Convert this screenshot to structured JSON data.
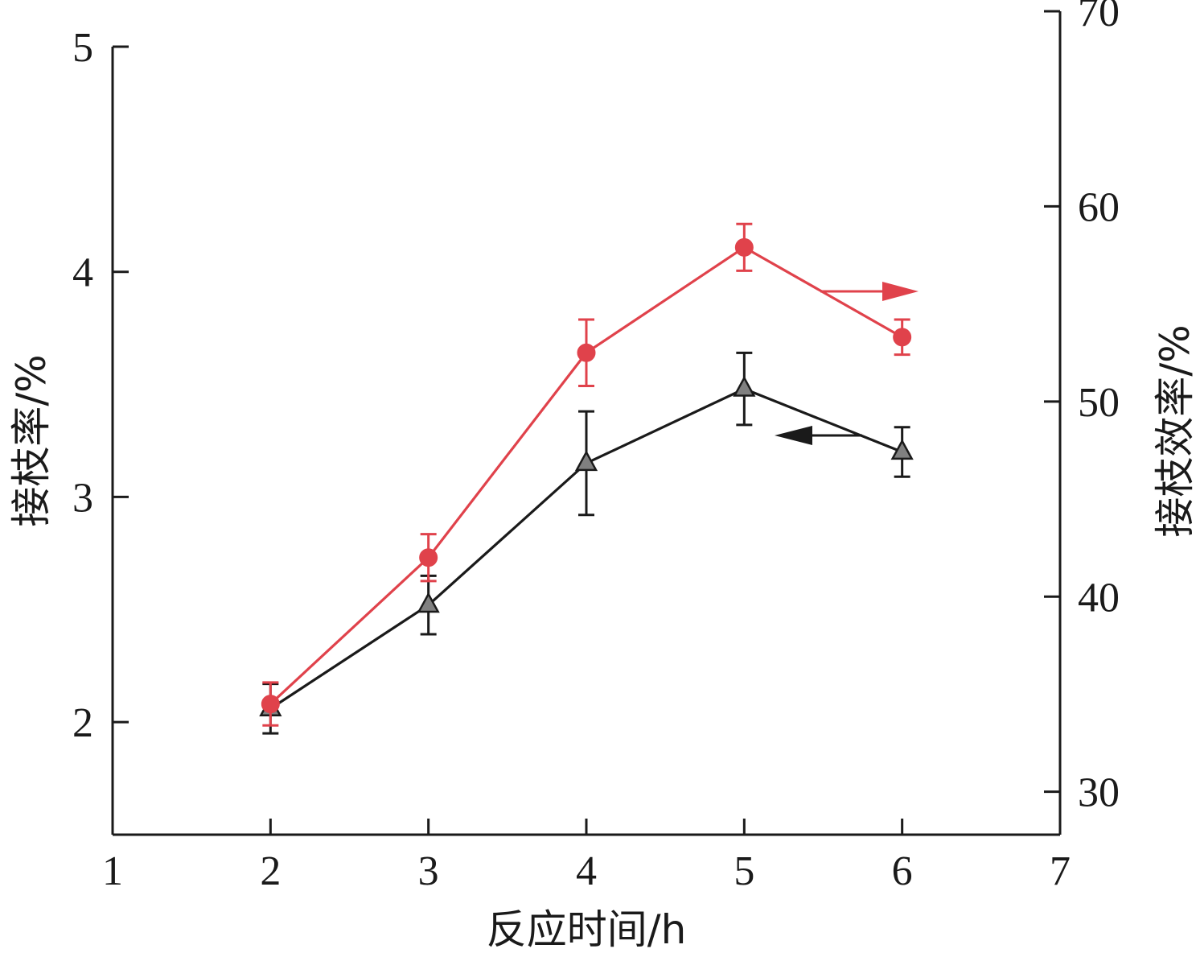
{
  "chart_data": {
    "type": "line",
    "x": [
      2,
      3,
      4,
      5,
      6
    ],
    "xlim": [
      1,
      7
    ],
    "x_ticks": [
      "1",
      "2",
      "3",
      "4",
      "5",
      "6",
      "7"
    ],
    "xlabel": "反应时间/h",
    "y_left": {
      "label": "接枝率/%",
      "lim": [
        1.5,
        5
      ],
      "ticks": [
        "2",
        "3",
        "4",
        "5"
      ]
    },
    "y_right": {
      "label": "接枝效率/%",
      "lim": [
        27.8,
        70
      ],
      "ticks": [
        "30",
        "40",
        "50",
        "60",
        "70"
      ]
    },
    "grid": false,
    "series": [
      {
        "axis": "left",
        "marker": "triangle",
        "color": "#1a1a1a",
        "fill": "#808080",
        "values": [
          2.06,
          2.52,
          3.15,
          3.48,
          3.2
        ],
        "errors": [
          0.11,
          0.13,
          0.23,
          0.16,
          0.11
        ],
        "indicator_direction": "left"
      },
      {
        "axis": "right",
        "marker": "circle",
        "color": "#e0424b",
        "values": [
          34.5,
          42.0,
          52.5,
          57.9,
          53.3
        ],
        "errors": [
          1.1,
          1.2,
          1.7,
          1.2,
          0.9
        ],
        "indicator_direction": "right"
      }
    ]
  }
}
